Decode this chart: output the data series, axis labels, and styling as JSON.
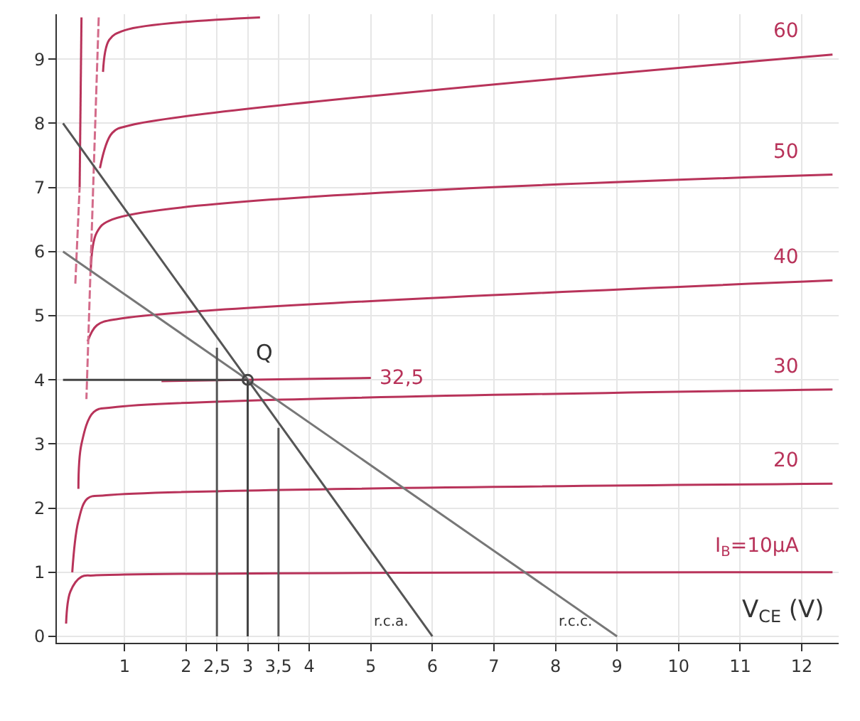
{
  "chart_data": {
    "type": "line",
    "xlabel": "V$_{CE}$ (V)",
    "xlim": [
      -0.1,
      12.6
    ],
    "ylim": [
      -0.1,
      9.7
    ],
    "xticks": [
      1,
      2,
      {
        "value": 2.5,
        "label": "2,5"
      },
      3,
      {
        "value": 3.5,
        "label": "3,5"
      },
      4,
      5,
      6,
      7,
      8,
      9,
      10,
      11,
      12
    ],
    "yticks": [
      0,
      1,
      2,
      3,
      4,
      5,
      6,
      7,
      8,
      9
    ],
    "grid": true,
    "marker": "none",
    "line_style": "solid",
    "series": [
      {
        "name": "I$_{B}$=10μA",
        "color": "#b8335a",
        "x": [
          0.05,
          0.12,
          0.3,
          0.5,
          12.5
        ],
        "values": [
          0.2,
          0.7,
          0.93,
          0.95,
          1.0
        ]
      },
      {
        "name": "20",
        "color": "#b8335a",
        "x": [
          0.15,
          0.25,
          0.4,
          0.7,
          12.5
        ],
        "values": [
          1.0,
          1.8,
          2.15,
          2.2,
          2.38
        ]
      },
      {
        "name": "30",
        "color": "#b8335a",
        "x": [
          0.25,
          0.3,
          0.5,
          0.8,
          12.5
        ],
        "values": [
          2.3,
          3.0,
          3.5,
          3.57,
          3.85
        ]
      },
      {
        "name": "32,5",
        "color": "#b8335a",
        "x": [
          1.6,
          5.0
        ],
        "values": [
          3.98,
          4.03
        ]
      },
      {
        "name": "40",
        "color": "#b8335a",
        "x": [
          0.4,
          0.55,
          0.9,
          12.5
        ],
        "values": [
          4.6,
          4.85,
          4.95,
          5.55
        ]
      },
      {
        "name": "50",
        "color": "#b8335a",
        "x": [
          0.45,
          0.55,
          0.8,
          12.5
        ],
        "values": [
          5.7,
          6.3,
          6.5,
          7.2
        ]
      },
      {
        "name": "60",
        "color": "#b8335a",
        "x": [
          0.6,
          0.8,
          1.1,
          12.5
        ],
        "values": [
          7.3,
          7.85,
          7.97,
          9.07
        ]
      },
      {
        "color": "#b8335a",
        "x": [
          0.65,
          0.75,
          1.0,
          3.2
        ],
        "values": [
          8.8,
          9.3,
          9.45,
          9.65
        ]
      },
      {
        "color": "#b8335a",
        "x": [
          0.27,
          0.3
        ],
        "values": [
          7.0,
          9.65
        ]
      },
      {
        "color": "#d36b8a",
        "line_style": "dashed",
        "x": [
          0.2,
          0.27
        ],
        "values": [
          5.5,
          7.0
        ]
      },
      {
        "color": "#d36b8a",
        "line_style": "dashed",
        "x": [
          0.58,
          0.5,
          0.38
        ],
        "values": [
          9.65,
          7.3,
          3.7
        ]
      },
      {
        "color": "#555555",
        "x": [
          0,
          6
        ],
        "values": [
          8,
          0
        ]
      },
      {
        "color": "#777777",
        "x": [
          0,
          9
        ],
        "values": [
          6,
          0
        ]
      },
      {
        "color": "#444444",
        "x": [
          0,
          3
        ],
        "values": [
          4,
          4
        ]
      },
      {
        "color": "#555555",
        "x": [
          2.5,
          2.5
        ],
        "values": [
          0,
          4.5
        ]
      },
      {
        "color": "#444444",
        "x": [
          3,
          3
        ],
        "values": [
          0,
          4
        ]
      },
      {
        "color": "#555555",
        "x": [
          3.5,
          3.5
        ],
        "values": [
          0,
          3.25
        ]
      },
      {
        "type": "scatter",
        "marker": "circle",
        "color": "#444444",
        "x": [
          3
        ],
        "values": [
          4
        ]
      }
    ],
    "annotations": [
      {
        "text": "Q",
        "x": 3,
        "y": 4
      },
      {
        "text": "r.c.a.",
        "x": 6,
        "y": 0
      },
      {
        "text": "r.c.c.",
        "x": 9,
        "y": 0
      }
    ]
  }
}
